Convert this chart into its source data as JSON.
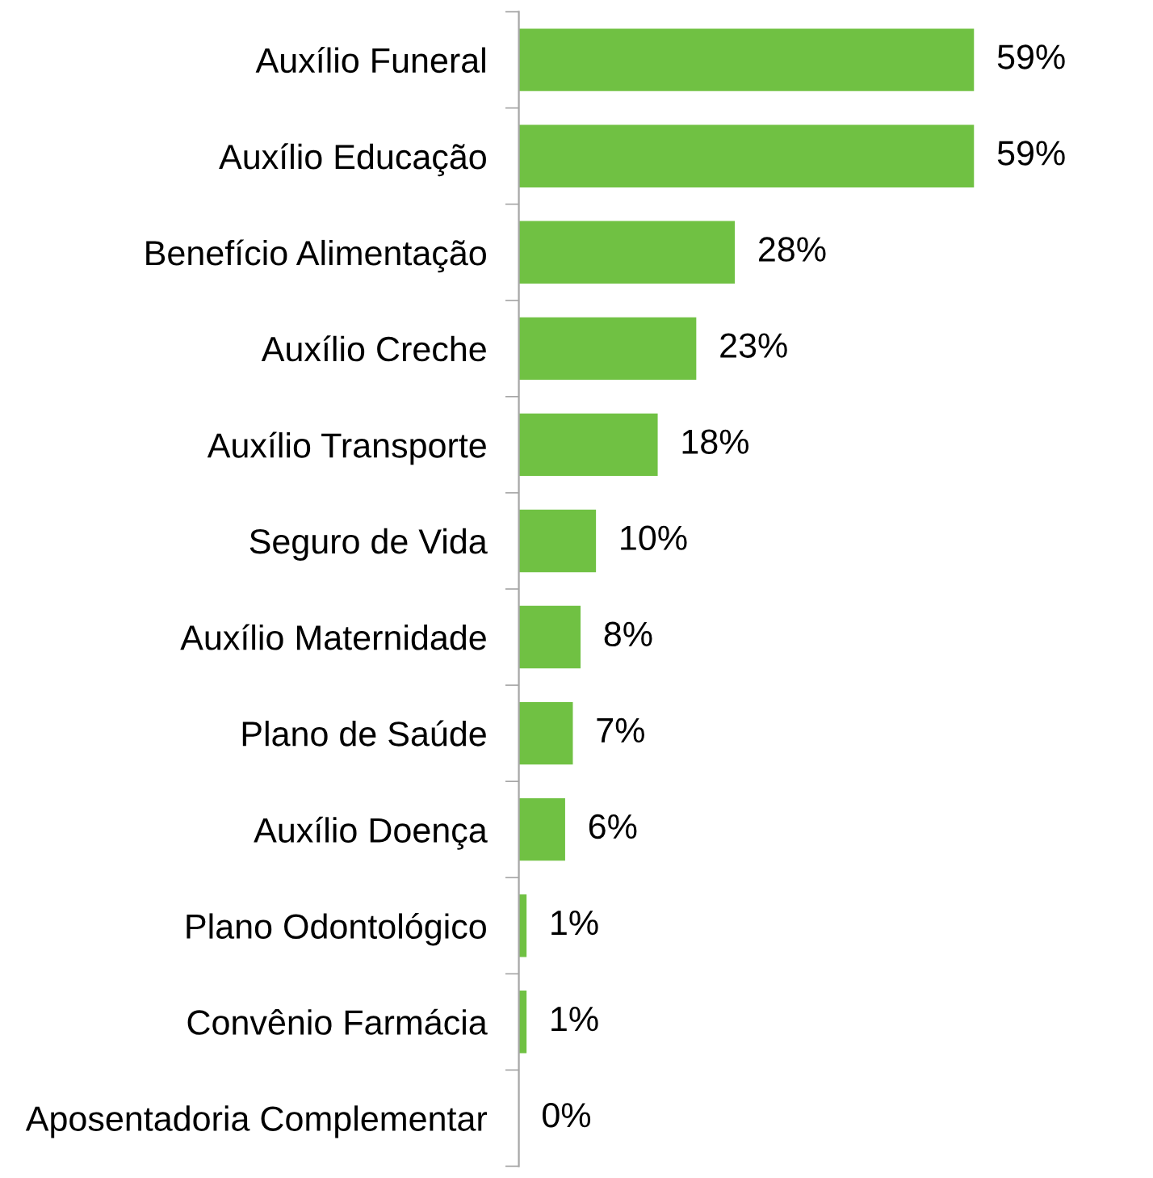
{
  "chart_data": {
    "type": "bar",
    "orientation": "horizontal",
    "categories": [
      "Auxílio Funeral",
      "Auxílio Educação",
      "Benefício Alimentação",
      "Auxílio Creche",
      "Auxílio Transporte",
      "Seguro de Vida",
      "Auxílio Maternidade",
      "Plano de Saúde",
      "Auxílio Doença",
      "Plano Odontológico",
      "Convênio Farmácia",
      "Aposentadoria Complementar"
    ],
    "values": [
      59,
      59,
      28,
      23,
      18,
      10,
      8,
      7,
      6,
      1,
      1,
      0
    ],
    "value_labels": [
      "59%",
      "59%",
      "28%",
      "23%",
      "18%",
      "10%",
      "8%",
      "7%",
      "6%",
      "1%",
      "1%",
      "0%"
    ],
    "color": "#70c143",
    "grid": false,
    "legend": false
  }
}
